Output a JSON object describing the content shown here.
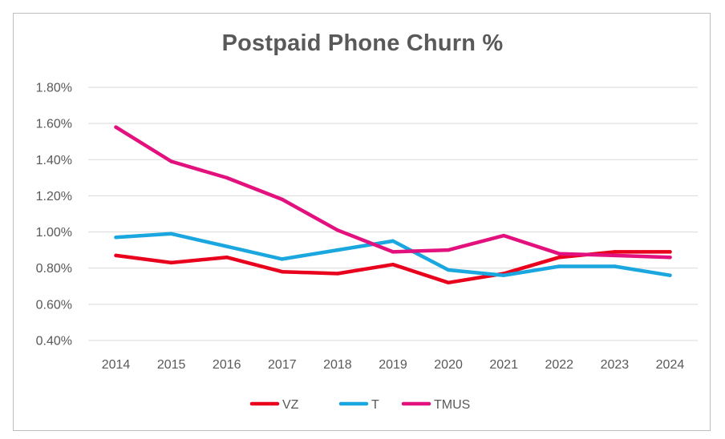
{
  "chart_data": {
    "type": "line",
    "title": "Postpaid Phone Churn %",
    "xlabel": "",
    "ylabel": "",
    "categories": [
      "2014",
      "2015",
      "2016",
      "2017",
      "2018",
      "2019",
      "2020",
      "2021",
      "2022",
      "2023",
      "2024"
    ],
    "ylim": [
      0.4,
      1.8
    ],
    "yticks": [
      0.4,
      0.6,
      0.8,
      1.0,
      1.2,
      1.4,
      1.6,
      1.8
    ],
    "ytick_labels": [
      "0.40%",
      "0.60%",
      "0.80%",
      "1.00%",
      "1.20%",
      "1.40%",
      "1.60%",
      "1.80%"
    ],
    "grid": true,
    "legend_position": "bottom",
    "series": [
      {
        "name": "VZ",
        "color": "#e8001c",
        "values": [
          0.87,
          0.83,
          0.86,
          0.78,
          0.77,
          0.82,
          0.72,
          0.77,
          0.86,
          0.89,
          0.89
        ]
      },
      {
        "name": "T",
        "color": "#1aa7e0",
        "values": [
          0.97,
          0.99,
          0.92,
          0.85,
          0.9,
          0.95,
          0.79,
          0.76,
          0.81,
          0.81,
          0.76
        ]
      },
      {
        "name": "TMUS",
        "color": "#e2117d",
        "values": [
          1.58,
          1.39,
          1.3,
          1.18,
          1.01,
          0.89,
          0.9,
          0.98,
          0.88,
          0.87,
          0.86
        ]
      }
    ]
  }
}
